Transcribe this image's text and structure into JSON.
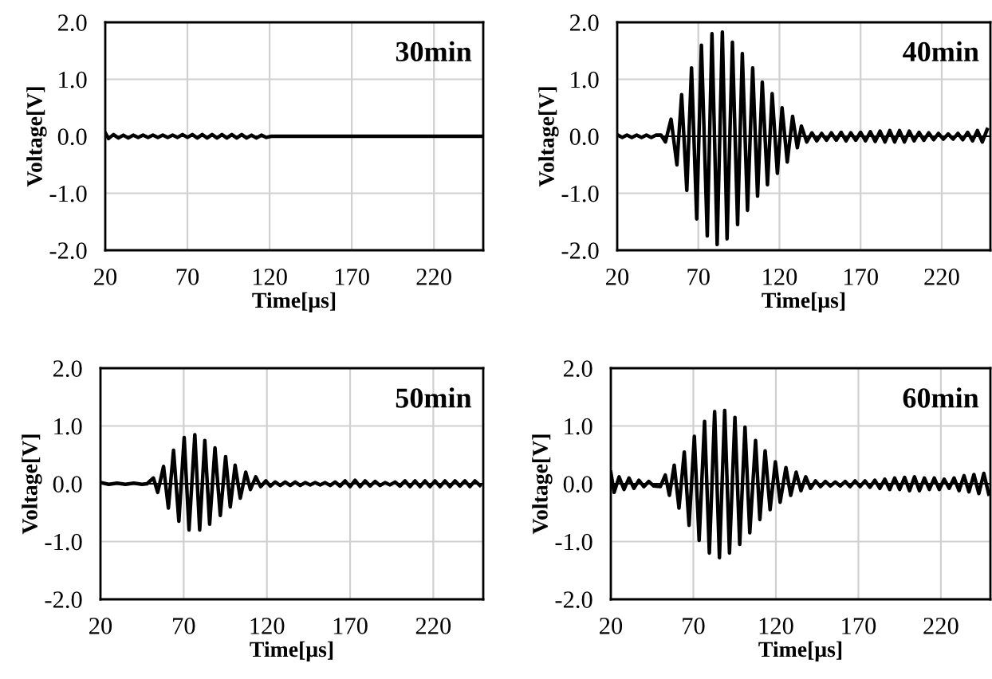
{
  "chart_data": [
    {
      "type": "line",
      "xlabel": "Time[μs]",
      "ylabel": "Voltage[V]",
      "annotations": [
        "30min"
      ],
      "xlim": [
        20,
        250
      ],
      "ylim": [
        -2,
        2
      ],
      "xticks": [
        20,
        70,
        120,
        170,
        220
      ],
      "yticks": [
        {
          "value": -2,
          "label": "-2.0"
        },
        {
          "value": -1,
          "label": "-1.0"
        },
        {
          "value": 0,
          "label": "0.0"
        },
        {
          "value": 1,
          "label": "1.0"
        },
        {
          "value": 2,
          "label": "2.0"
        }
      ],
      "grid": true,
      "marker": "none",
      "line_style": "solid",
      "series": [
        {
          "color": "#000000",
          "x": [
            20,
            22,
            25,
            28,
            31,
            34,
            37,
            40,
            43,
            46,
            49,
            52,
            55,
            58,
            61,
            64,
            67,
            70,
            73,
            76,
            79,
            82,
            85,
            88,
            91,
            94,
            97,
            100,
            103,
            106,
            109,
            112,
            115,
            118,
            121,
            250
          ],
          "values": [
            0.06,
            -0.04,
            0.03,
            -0.03,
            0.02,
            -0.03,
            0.02,
            -0.02,
            0.02,
            -0.02,
            0.02,
            -0.02,
            0.02,
            -0.02,
            0.02,
            -0.02,
            0.03,
            -0.02,
            0.03,
            -0.03,
            0.03,
            -0.03,
            0.03,
            -0.03,
            0.03,
            -0.03,
            0.03,
            -0.03,
            0.03,
            -0.03,
            0.02,
            -0.03,
            0.02,
            -0.02,
            0.0,
            0.0
          ]
        }
      ]
    },
    {
      "type": "line",
      "xlabel": "Time[μs]",
      "ylabel": "Voltage[V]",
      "annotations": [
        "40min"
      ],
      "xlim": [
        20,
        250
      ],
      "ylim": [
        -2,
        2
      ],
      "xticks": [
        20,
        70,
        120,
        170,
        220
      ],
      "yticks": [
        {
          "value": -2,
          "label": "-2.0"
        },
        {
          "value": -1,
          "label": "-1.0"
        },
        {
          "value": 0,
          "label": "0.0"
        },
        {
          "value": 1,
          "label": "1.0"
        },
        {
          "value": 2,
          "label": "2.0"
        }
      ],
      "grid": true,
      "marker": "none",
      "line_style": "solid",
      "series": [
        {
          "color": "#000000",
          "x": [
            20,
            23,
            26,
            29,
            32,
            35,
            38,
            41,
            44,
            47,
            49.7,
            53.2,
            56.8,
            59.7,
            62.9,
            65.8,
            69,
            71.9,
            75.5,
            78.4,
            81.6,
            84.8,
            87.7,
            91,
            94.2,
            97.1,
            100.3,
            103.5,
            106.5,
            109.4,
            112.6,
            115.5,
            118.7,
            121.6,
            124.8,
            128.1,
            131,
            133.5,
            136.8,
            140,
            143,
            146,
            149,
            152,
            155,
            158,
            161,
            164,
            167,
            170,
            173,
            176,
            179,
            182,
            185,
            188,
            191,
            194,
            197,
            200,
            203,
            206,
            209,
            212,
            215,
            218,
            221,
            224,
            227,
            230,
            233,
            236,
            239,
            242,
            245,
            248
          ],
          "values": [
            0.03,
            -0.02,
            0.02,
            -0.02,
            0.02,
            -0.02,
            0.02,
            -0.02,
            0.02,
            0.02,
            -0.1,
            0.3,
            -0.5,
            0.73,
            -0.95,
            1.2,
            -1.45,
            1.6,
            -1.75,
            1.8,
            -1.9,
            1.83,
            -1.8,
            1.65,
            -1.55,
            1.45,
            -1.3,
            1.2,
            -1.05,
            0.95,
            -0.85,
            0.75,
            -0.65,
            0.5,
            -0.45,
            0.35,
            -0.2,
            0.18,
            -0.1,
            0.06,
            -0.08,
            0.05,
            -0.07,
            0.06,
            -0.07,
            0.07,
            -0.08,
            0.06,
            -0.07,
            0.07,
            -0.08,
            0.08,
            -0.09,
            0.09,
            -0.1,
            0.1,
            -0.1,
            0.1,
            -0.1,
            0.09,
            -0.08,
            0.07,
            -0.07,
            0.06,
            -0.06,
            0.05,
            -0.05,
            0.04,
            -0.05,
            0.05,
            -0.06,
            0.07,
            -0.08,
            0.1,
            -0.1,
            0.12
          ]
        }
      ]
    },
    {
      "type": "line",
      "xlabel": "Time[μs]",
      "ylabel": "Voltage[V]",
      "annotations": [
        "50min"
      ],
      "xlim": [
        20,
        250
      ],
      "ylim": [
        -2,
        2
      ],
      "xticks": [
        20,
        70,
        120,
        170,
        220
      ],
      "yticks": [
        {
          "value": -2,
          "label": "-2.0"
        },
        {
          "value": -1,
          "label": "-1.0"
        },
        {
          "value": 0,
          "label": "0.0"
        },
        {
          "value": 1,
          "label": "1.0"
        },
        {
          "value": 2,
          "label": "2.0"
        }
      ],
      "grid": true,
      "marker": "none",
      "line_style": "solid",
      "series": [
        {
          "color": "#000000",
          "x": [
            20,
            25,
            30,
            35,
            40,
            45,
            48,
            51.8,
            54.4,
            57.9,
            60.8,
            63.9,
            67.1,
            70.3,
            73.2,
            76.7,
            79.6,
            82.7,
            85.6,
            88.8,
            92,
            95.2,
            98,
            100.9,
            104,
            107.3,
            110.1,
            113.3,
            116.2,
            119.4,
            122,
            125,
            128,
            131,
            134,
            137,
            140,
            143,
            146,
            149,
            152,
            155,
            158,
            161,
            164,
            167,
            170,
            173,
            176,
            179,
            182,
            185,
            188,
            191,
            194,
            197,
            200,
            203,
            206,
            209,
            212,
            215,
            218,
            221,
            224,
            227,
            230,
            233,
            236,
            239,
            242,
            245,
            248
          ],
          "values": [
            0.02,
            -0.01,
            0.01,
            -0.01,
            0.01,
            -0.01,
            0.0,
            0.1,
            -0.15,
            0.3,
            -0.42,
            0.58,
            -0.65,
            0.8,
            -0.8,
            0.85,
            -0.8,
            0.75,
            -0.7,
            0.62,
            -0.55,
            0.47,
            -0.4,
            0.32,
            -0.25,
            0.2,
            -0.1,
            0.12,
            -0.05,
            0.05,
            -0.04,
            0.03,
            -0.03,
            0.03,
            -0.03,
            0.03,
            -0.03,
            0.02,
            -0.02,
            0.02,
            -0.02,
            0.02,
            -0.03,
            0.03,
            -0.04,
            0.05,
            -0.05,
            0.06,
            -0.05,
            0.05,
            -0.04,
            0.04,
            -0.03,
            0.02,
            -0.02,
            0.03,
            -0.04,
            0.05,
            -0.05,
            0.05,
            -0.05,
            0.05,
            -0.05,
            0.05,
            -0.05,
            0.05,
            -0.05,
            0.05,
            -0.04,
            0.05,
            -0.05,
            0.05,
            -0.03
          ]
        }
      ]
    },
    {
      "type": "line",
      "xlabel": "Time[μs]",
      "ylabel": "Voltage[V]",
      "annotations": [
        "60min"
      ],
      "xlim": [
        20,
        250
      ],
      "ylim": [
        -2,
        2
      ],
      "xticks": [
        20,
        70,
        120,
        170,
        220
      ],
      "yticks": [
        {
          "value": -2,
          "label": "-2.0"
        },
        {
          "value": -1,
          "label": "-1.0"
        },
        {
          "value": 0,
          "label": "0.0"
        },
        {
          "value": 1,
          "label": "1.0"
        },
        {
          "value": 2,
          "label": "2.0"
        }
      ],
      "grid": true,
      "marker": "none",
      "line_style": "solid",
      "series": [
        {
          "color": "#000000",
          "x": [
            20,
            22,
            25,
            28,
            31,
            34,
            37,
            40,
            43,
            46,
            50,
            53,
            55.5,
            58.4,
            61.3,
            64.5,
            67.4,
            70.6,
            73.5,
            76.8,
            79.7,
            82.9,
            85.8,
            89,
            91.9,
            95.2,
            98.1,
            101.3,
            104.2,
            107.7,
            110.3,
            113.5,
            116.5,
            119.7,
            122.6,
            126.1,
            129,
            132.3,
            135.2,
            138.1,
            141,
            144,
            147,
            150,
            153,
            156,
            159,
            162,
            165,
            168,
            171,
            174,
            177,
            180,
            183,
            186,
            189,
            192,
            195,
            198,
            201,
            204,
            207,
            210,
            213,
            216,
            219,
            222,
            225,
            228,
            231,
            234,
            237,
            240,
            243,
            246,
            249
          ],
          "values": [
            0.2,
            -0.15,
            0.12,
            -0.1,
            0.1,
            -0.08,
            0.06,
            -0.05,
            0.04,
            -0.04,
            -0.05,
            0.15,
            -0.2,
            0.32,
            -0.42,
            0.55,
            -0.72,
            0.82,
            -0.98,
            1.08,
            -1.2,
            1.25,
            -1.28,
            1.27,
            -1.2,
            1.15,
            -1.05,
            0.98,
            -0.85,
            0.75,
            -0.62,
            0.57,
            -0.45,
            0.38,
            -0.32,
            0.28,
            -0.2,
            0.2,
            -0.12,
            0.12,
            -0.08,
            0.05,
            -0.05,
            0.04,
            -0.04,
            0.03,
            -0.04,
            0.04,
            -0.05,
            0.05,
            -0.05,
            0.05,
            -0.06,
            0.06,
            -0.08,
            0.08,
            -0.1,
            0.1,
            -0.1,
            0.11,
            -0.12,
            0.12,
            -0.12,
            0.1,
            -0.1,
            0.1,
            -0.1,
            0.08,
            -0.08,
            0.1,
            -0.12,
            0.14,
            -0.14,
            0.16,
            -0.17,
            0.18,
            -0.18
          ]
        }
      ]
    }
  ]
}
